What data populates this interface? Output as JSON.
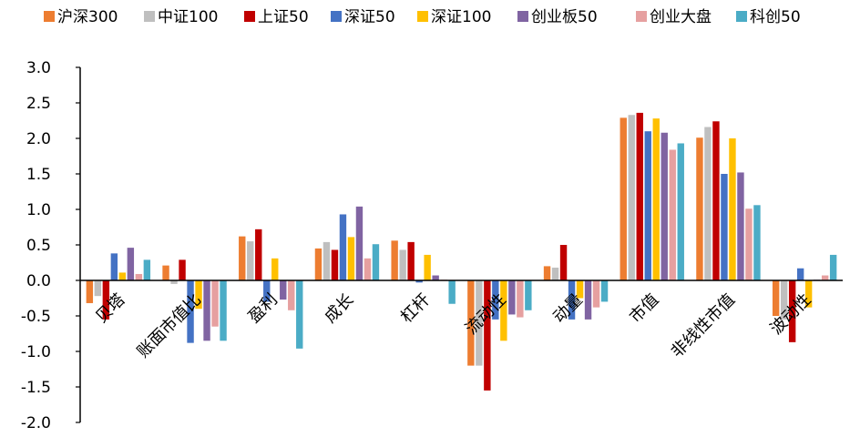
{
  "chart_data": {
    "type": "bar",
    "categories": [
      "贝塔",
      "账面市值比",
      "盈利",
      "成长",
      "杠杆",
      "流动性",
      "动量",
      "市值",
      "非线性市值",
      "波动性"
    ],
    "series": [
      {
        "name": "沪深300",
        "color": "#ED7D31",
        "values": [
          -0.32,
          0.21,
          0.62,
          0.45,
          0.56,
          -1.2,
          0.2,
          2.29,
          2.01,
          -0.5
        ]
      },
      {
        "name": "中证100",
        "color": "#BFBFBF",
        "values": [
          -0.22,
          -0.05,
          0.55,
          0.54,
          0.43,
          -1.2,
          0.18,
          2.33,
          2.16,
          -0.55
        ]
      },
      {
        "name": "上证50",
        "color": "#C00000",
        "values": [
          -0.55,
          0.29,
          0.72,
          0.43,
          0.54,
          -1.55,
          0.5,
          2.36,
          2.24,
          -0.87
        ]
      },
      {
        "name": "深证50",
        "color": "#4472C4",
        "values": [
          0.38,
          -0.88,
          -0.3,
          0.93,
          -0.03,
          -0.55,
          -0.55,
          2.1,
          1.5,
          0.17
        ]
      },
      {
        "name": "深证100",
        "color": "#FFC000",
        "values": [
          0.11,
          -0.4,
          0.31,
          0.61,
          0.36,
          -0.85,
          -0.25,
          2.28,
          2.0,
          -0.38
        ]
      },
      {
        "name": "创业板50",
        "color": "#8064A2",
        "values": [
          0.46,
          -0.85,
          -0.27,
          1.04,
          0.07,
          -0.48,
          -0.55,
          2.08,
          1.52,
          0.01
        ]
      },
      {
        "name": "创业大盘",
        "color": "#E6A0A0",
        "values": [
          0.09,
          -0.65,
          -0.42,
          0.31,
          0.01,
          -0.52,
          -0.38,
          1.84,
          1.01,
          0.07
        ]
      },
      {
        "name": "科创50",
        "color": "#4BACC6",
        "values": [
          0.29,
          -0.85,
          -0.96,
          0.51,
          -0.33,
          -0.42,
          -0.3,
          1.93,
          1.06,
          0.36
        ]
      }
    ],
    "yticks": [
      "3.0",
      "2.5",
      "2.0",
      "1.5",
      "1.0",
      "0.5",
      "0.0",
      "-0.5",
      "-1.0",
      "-1.5",
      "-2.0"
    ],
    "ylim": [
      -2.0,
      3.0
    ],
    "legend_position": "top",
    "grid": false
  }
}
